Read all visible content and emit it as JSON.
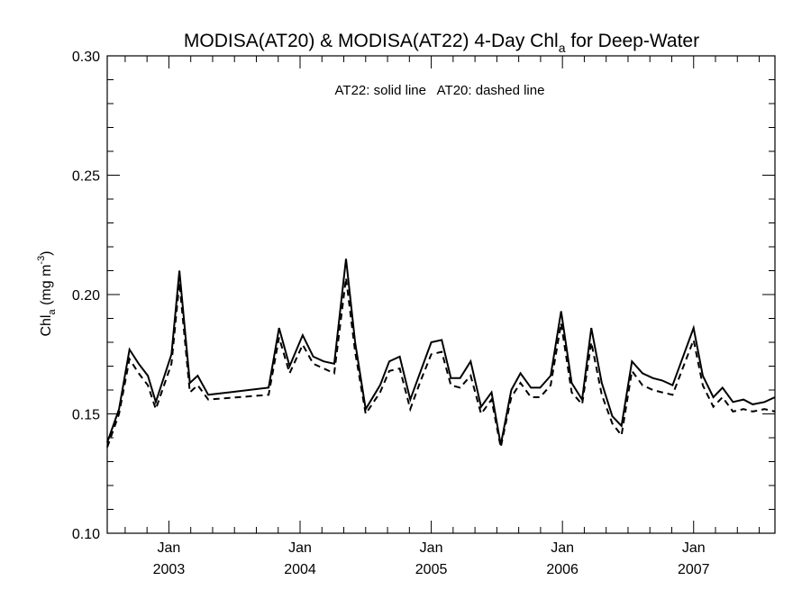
{
  "chart_data": {
    "type": "line",
    "title": "MODISA(AT20) & MODISA(AT22) 4-Day Chl",
    "title_subscript": "a",
    "title_suffix": " for Deep-Water",
    "ylabel_main": "Chl",
    "ylabel_sub": "a",
    "ylabel_units": " (mg m",
    "ylabel_exp": "-3",
    "ylabel_close": ")",
    "annotation": "AT22: solid line   AT20: dashed line",
    "ylim": [
      0.1,
      0.3
    ],
    "xlim": [
      2002.53,
      2007.62
    ],
    "y_ticks": [
      "0.10",
      "0.15",
      "0.20",
      "0.25",
      "0.30"
    ],
    "x_tick_labels": [
      {
        "month": "Jan",
        "year": "2003"
      },
      {
        "month": "Jan",
        "year": "2004"
      },
      {
        "month": "Jan",
        "year": "2005"
      },
      {
        "month": "Jan",
        "year": "2006"
      },
      {
        "month": "Jan",
        "year": "2007"
      }
    ],
    "x_major": [
      2003.0,
      2004.0,
      2005.0,
      2006.0,
      2007.0
    ],
    "x": [
      2002.53,
      2002.62,
      2002.7,
      2002.77,
      2002.84,
      2002.9,
      2003.02,
      2003.08,
      2003.16,
      2003.22,
      2003.3,
      2003.76,
      2003.84,
      2003.92,
      2004.02,
      2004.1,
      2004.18,
      2004.26,
      2004.35,
      2004.42,
      2004.5,
      2004.61,
      2004.68,
      2004.76,
      2004.84,
      2004.92,
      2005.0,
      2005.08,
      2005.15,
      2005.22,
      2005.3,
      2005.38,
      2005.46,
      2005.53,
      2005.61,
      2005.68,
      2005.76,
      2005.83,
      2005.91,
      2005.99,
      2006.07,
      2006.15,
      2006.22,
      2006.3,
      2006.38,
      2006.45,
      2006.53,
      2006.61,
      2006.69,
      2006.76,
      2006.84,
      2007.0,
      2007.07,
      2007.15,
      2007.22,
      2007.3,
      2007.38,
      2007.45,
      2007.54,
      2007.62
    ],
    "series": [
      {
        "name": "AT22",
        "style": "solid",
        "color": "#000000",
        "values": [
          0.138,
          0.152,
          0.177,
          0.171,
          0.166,
          0.155,
          0.175,
          0.21,
          0.163,
          0.166,
          0.158,
          0.161,
          0.186,
          0.17,
          0.183,
          0.174,
          0.172,
          0.171,
          0.215,
          0.18,
          0.152,
          0.162,
          0.172,
          0.174,
          0.156,
          0.168,
          0.18,
          0.181,
          0.165,
          0.165,
          0.172,
          0.153,
          0.159,
          0.137,
          0.16,
          0.167,
          0.161,
          0.161,
          0.166,
          0.193,
          0.163,
          0.156,
          0.186,
          0.163,
          0.149,
          0.145,
          0.172,
          0.167,
          0.165,
          0.164,
          0.162,
          0.186,
          0.166,
          0.157,
          0.161,
          0.155,
          0.156,
          0.154,
          0.155,
          0.157
        ]
      },
      {
        "name": "AT20",
        "style": "dashed",
        "color": "#000000",
        "values": [
          0.136,
          0.15,
          0.173,
          0.167,
          0.162,
          0.152,
          0.171,
          0.205,
          0.159,
          0.162,
          0.156,
          0.158,
          0.182,
          0.167,
          0.179,
          0.171,
          0.169,
          0.167,
          0.207,
          0.176,
          0.15,
          0.159,
          0.168,
          0.169,
          0.152,
          0.164,
          0.175,
          0.176,
          0.162,
          0.161,
          0.166,
          0.15,
          0.156,
          0.136,
          0.157,
          0.163,
          0.157,
          0.157,
          0.162,
          0.188,
          0.159,
          0.154,
          0.18,
          0.158,
          0.146,
          0.141,
          0.168,
          0.162,
          0.16,
          0.159,
          0.158,
          0.181,
          0.162,
          0.153,
          0.157,
          0.151,
          0.152,
          0.151,
          0.152,
          0.151
        ]
      }
    ],
    "grid": false
  }
}
